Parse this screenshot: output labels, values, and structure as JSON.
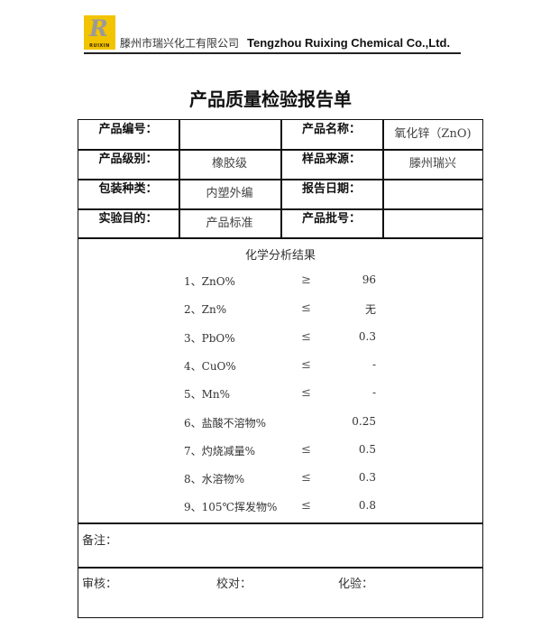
{
  "header": {
    "logo_text": "RUIXIN",
    "company_cn": "滕州市瑞兴化工有限公司",
    "company_en": "Tengzhou Ruixing Chemical Co.,Ltd."
  },
  "title": "产品质量检验报告单",
  "info": [
    {
      "label1": "产品编号：",
      "value1": "",
      "label2": "产品名称：",
      "value2": "氧化锌（ZnO)"
    },
    {
      "label1": "产品级别：",
      "value1": "橡胶级",
      "label2": "样品来源：",
      "value2": "滕州瑞兴"
    },
    {
      "label1": "包装种类：",
      "value1": "内塑外编",
      "label2": "报告日期：",
      "value2": ""
    },
    {
      "label1": "实验目的：",
      "value1": "产品标准",
      "label2": "产品批号：",
      "value2": ""
    }
  ],
  "analysis": {
    "title": "化学分析结果",
    "items": [
      {
        "item": "1、ZnO%",
        "op": "≥",
        "value": "96"
      },
      {
        "item": "2、Zn%",
        "op": "≤",
        "value": "无"
      },
      {
        "item": "3、PbO%",
        "op": "≤",
        "value": "0.3"
      },
      {
        "item": "4、CuO%",
        "op": "≤",
        "value": "-"
      },
      {
        "item": "5、Mn%",
        "op": "≤",
        "value": "-"
      },
      {
        "item": "6、盐酸不溶物%",
        "op": "",
        "value": "0.25"
      },
      {
        "item": "7、灼烧减量%",
        "op": "≤",
        "value": "0.5"
      },
      {
        "item": "8、水溶物%",
        "op": "≤",
        "value": "0.3"
      },
      {
        "item": "9、105℃挥发物%",
        "op": "≤",
        "value": "0.8"
      }
    ]
  },
  "remarks_label": "备注：",
  "signatures": {
    "review": "审核：",
    "check": "校对：",
    "test": "化验："
  }
}
